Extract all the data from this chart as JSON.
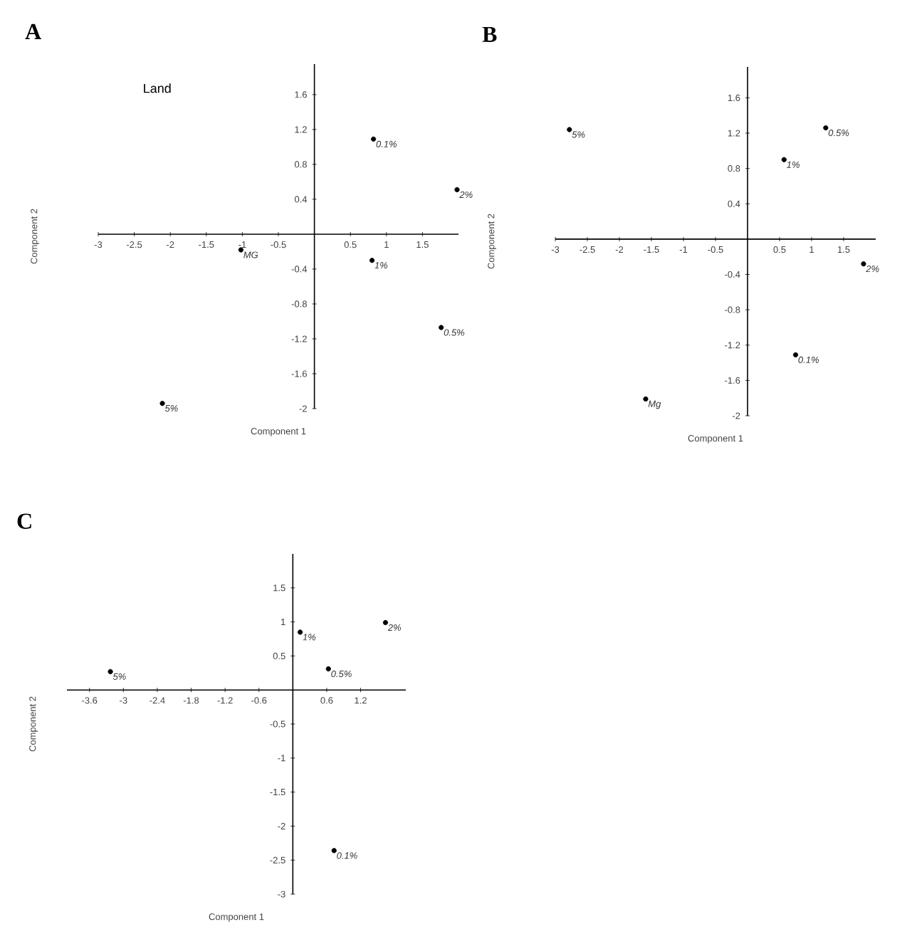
{
  "chart_data": [
    {
      "type": "scatter",
      "title": "A",
      "xlabel": "Component 1",
      "ylabel": "Component 2",
      "color": "#000000",
      "marker": "circle",
      "x": [
        0.82,
        1.98,
        0.8,
        1.76,
        -2.11,
        -1.02
      ],
      "values": [
        1.09,
        0.51,
        -0.3,
        -1.07,
        -1.94,
        -0.18
      ],
      "xlim": [
        -3,
        2
      ],
      "ylim": [
        -2,
        1.95
      ],
      "xticks": [
        -3,
        -2.5,
        -2,
        -1.5,
        -1,
        -0.5,
        0.5,
        1,
        1.5
      ],
      "yticks": [
        -2,
        -1.6,
        -1.2,
        -0.8,
        -0.4,
        0.4,
        0.8,
        1.2,
        1.6
      ],
      "annotations": [
        "Land",
        {
          "text": "0.1%",
          "x": 0.82,
          "y": 1.09
        },
        {
          "text": "2%",
          "x": 1.98,
          "y": 0.51
        },
        {
          "text": "1%",
          "x": 0.8,
          "y": -0.3
        },
        {
          "text": "0.5%",
          "x": 1.76,
          "y": -1.07
        },
        {
          "text": "5%",
          "x": -2.11,
          "y": -1.94
        },
        {
          "text": "MG",
          "x": -1.02,
          "y": -0.18
        }
      ]
    },
    {
      "type": "scatter",
      "title": "B",
      "xlabel": "Component 1",
      "ylabel": "Component 2",
      "color": "#000000",
      "marker": "circle",
      "x": [
        -2.78,
        1.22,
        0.57,
        1.81,
        0.75,
        -1.59
      ],
      "values": [
        1.24,
        1.26,
        0.9,
        -0.28,
        -1.31,
        -1.81
      ],
      "xlim": [
        -3,
        2
      ],
      "ylim": [
        -2,
        1.95
      ],
      "xticks": [
        -3,
        -2.5,
        -2,
        -1.5,
        -1,
        -0.5,
        0.5,
        1,
        1.5
      ],
      "yticks": [
        -2,
        -1.6,
        -1.2,
        -0.8,
        -0.4,
        0.4,
        0.8,
        1.2,
        1.6
      ],
      "annotations": [
        {
          "text": "5%",
          "x": -2.78,
          "y": 1.24
        },
        {
          "text": "0.5%",
          "x": 1.22,
          "y": 1.26
        },
        {
          "text": "1%",
          "x": 0.57,
          "y": 0.9
        },
        {
          "text": "2%",
          "x": 1.81,
          "y": -0.28
        },
        {
          "text": "0.1%",
          "x": 0.75,
          "y": -1.31
        },
        {
          "text": "Mg",
          "x": -1.59,
          "y": -1.81
        }
      ]
    },
    {
      "type": "scatter",
      "title": "C",
      "xlabel": "Component 1",
      "ylabel": "Component 2",
      "color": "#000000",
      "marker": "circle",
      "x": [
        -3.23,
        0.13,
        1.64,
        0.63,
        0.73
      ],
      "values": [
        0.27,
        0.85,
        0.99,
        0.31,
        -2.36
      ],
      "xlim": [
        -4,
        2
      ],
      "ylim": [
        -3,
        2
      ],
      "xticks": [
        -3.6,
        -3,
        -2.4,
        -1.8,
        -1.2,
        -0.6,
        0.6,
        1.2
      ],
      "yticks": [
        -3,
        -2.5,
        -2,
        -1.5,
        -1,
        -0.5,
        0.5,
        1,
        1.5
      ],
      "annotations": [
        {
          "text": "5%",
          "x": -3.23,
          "y": 0.27
        },
        {
          "text": "1%",
          "x": 0.13,
          "y": 0.85
        },
        {
          "text": "2%",
          "x": 1.64,
          "y": 0.99
        },
        {
          "text": "0.5%",
          "x": 0.63,
          "y": 0.31
        },
        {
          "text": "0.1%",
          "x": 0.73,
          "y": -2.36
        }
      ]
    }
  ]
}
